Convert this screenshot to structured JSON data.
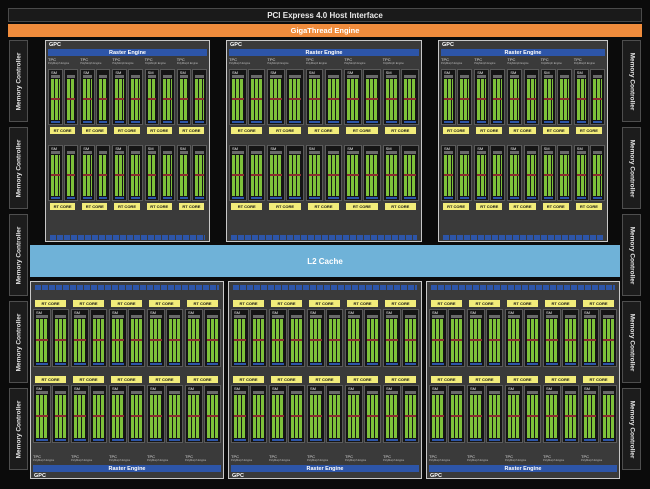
{
  "host_interface": "PCI Express 4.0 Host Interface",
  "gigathread": "GigaThread Engine",
  "l2_cache": "L2 Cache",
  "memory_controller": "Memory Controller",
  "gpc_label": "GPC",
  "raster_engine": "Raster Engine",
  "tpc_label": "TPC",
  "polymorph_engine": "PolyMorph Engine",
  "sm_label": "SM",
  "rt_core": "RT CORE",
  "colors": {
    "gigathread": "#f08c3c",
    "l2_cache": "#6fb2d8",
    "raster_engine": "#2d55a8",
    "cuda_cores": "#7ec23a",
    "rt_core": "#f2ec7a"
  }
}
